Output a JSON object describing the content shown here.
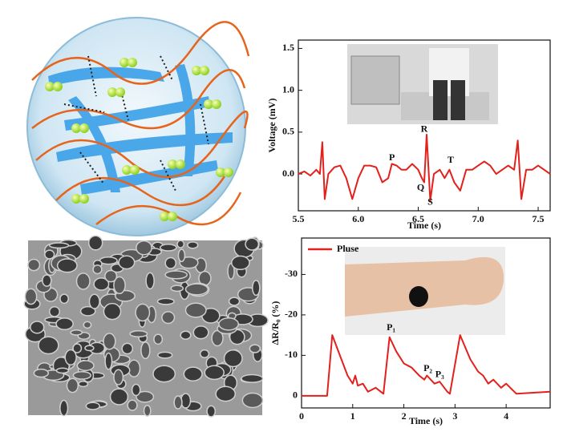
{
  "chart_data": [
    {
      "type": "line",
      "x_label": "Time (s)",
      "y_label": "Voltage (mV)",
      "x": [
        5.5,
        5.55,
        5.6,
        5.65,
        5.68,
        5.7,
        5.72,
        5.75,
        5.8,
        5.85,
        5.9,
        5.95,
        6.0,
        6.05,
        6.1,
        6.15,
        6.2,
        6.25,
        6.28,
        6.32,
        6.36,
        6.4,
        6.45,
        6.5,
        6.53,
        6.55,
        6.57,
        6.6,
        6.63,
        6.68,
        6.72,
        6.76,
        6.8,
        6.85,
        6.9,
        6.95,
        7.0,
        7.05,
        7.1,
        7.15,
        7.2,
        7.25,
        7.3,
        7.33,
        7.36,
        7.4,
        7.45,
        7.5,
        7.55,
        7.6
      ],
      "series": [
        {
          "color": "#e3201b",
          "values": [
            0.0,
            0.03,
            -0.02,
            0.05,
            0.0,
            0.38,
            -0.3,
            0.0,
            0.08,
            0.1,
            -0.05,
            -0.3,
            -0.05,
            0.1,
            0.1,
            0.08,
            -0.1,
            -0.05,
            0.12,
            0.1,
            0.05,
            0.05,
            0.12,
            0.05,
            -0.05,
            -0.1,
            0.47,
            -0.32,
            0.0,
            0.05,
            -0.05,
            0.05,
            -0.1,
            -0.2,
            0.05,
            0.05,
            0.1,
            0.15,
            0.1,
            0.0,
            0.05,
            0.1,
            0.05,
            0.4,
            -0.3,
            0.05,
            0.05,
            0.1,
            0.05,
            0.0
          ]
        }
      ],
      "xlim": [
        5.5,
        7.6
      ],
      "xticks": [
        5.5,
        {
          "value": 6,
          "label": "6.0"
        },
        6.5,
        {
          "value": 7,
          "label": "7.0"
        },
        7.5
      ],
      "ylim": [
        -0.44,
        1.6
      ],
      "yticks": [
        {
          "value": 0,
          "label": "0.0"
        },
        0.5,
        {
          "value": 1,
          "label": "1.0"
        },
        1.5
      ],
      "annotations": [
        "P",
        "R",
        "T",
        "Q",
        "S"
      ]
    },
    {
      "type": "line",
      "x_label": "Time (s)",
      "y_label": "ΔR/R₀ (%)",
      "x": [
        0,
        0.5,
        0.6,
        0.75,
        0.9,
        1.0,
        1.05,
        1.1,
        1.2,
        1.3,
        1.45,
        1.6,
        1.72,
        1.85,
        2.0,
        2.15,
        2.3,
        2.4,
        2.45,
        2.6,
        2.7,
        2.85,
        2.9,
        3.1,
        3.3,
        3.45,
        3.55,
        3.65,
        3.75,
        3.9,
        4.0,
        4.2,
        4.86
      ],
      "series": [
        {
          "name": "Pluse",
          "color": "#e3201b",
          "values": [
            0,
            0,
            -15,
            -10,
            -5,
            -3,
            -5,
            -2.5,
            -3,
            -1,
            -2,
            -0.5,
            -14.5,
            -11,
            -8,
            -7,
            -5,
            -4,
            -5,
            -3,
            -3.5,
            -1,
            -0.5,
            -15,
            -9,
            -6,
            -5,
            -3,
            -4,
            -2,
            -3,
            -0.5,
            -1
          ]
        }
      ],
      "xlim": [
        0,
        4.86
      ],
      "xticks": [
        0,
        1,
        2,
        3,
        4
      ],
      "ylim": [
        3,
        -39
      ],
      "yticks": [
        0,
        -10,
        -20,
        -30
      ],
      "annotations": [
        "P₁",
        "P₂",
        "P₃"
      ]
    }
  ]
}
